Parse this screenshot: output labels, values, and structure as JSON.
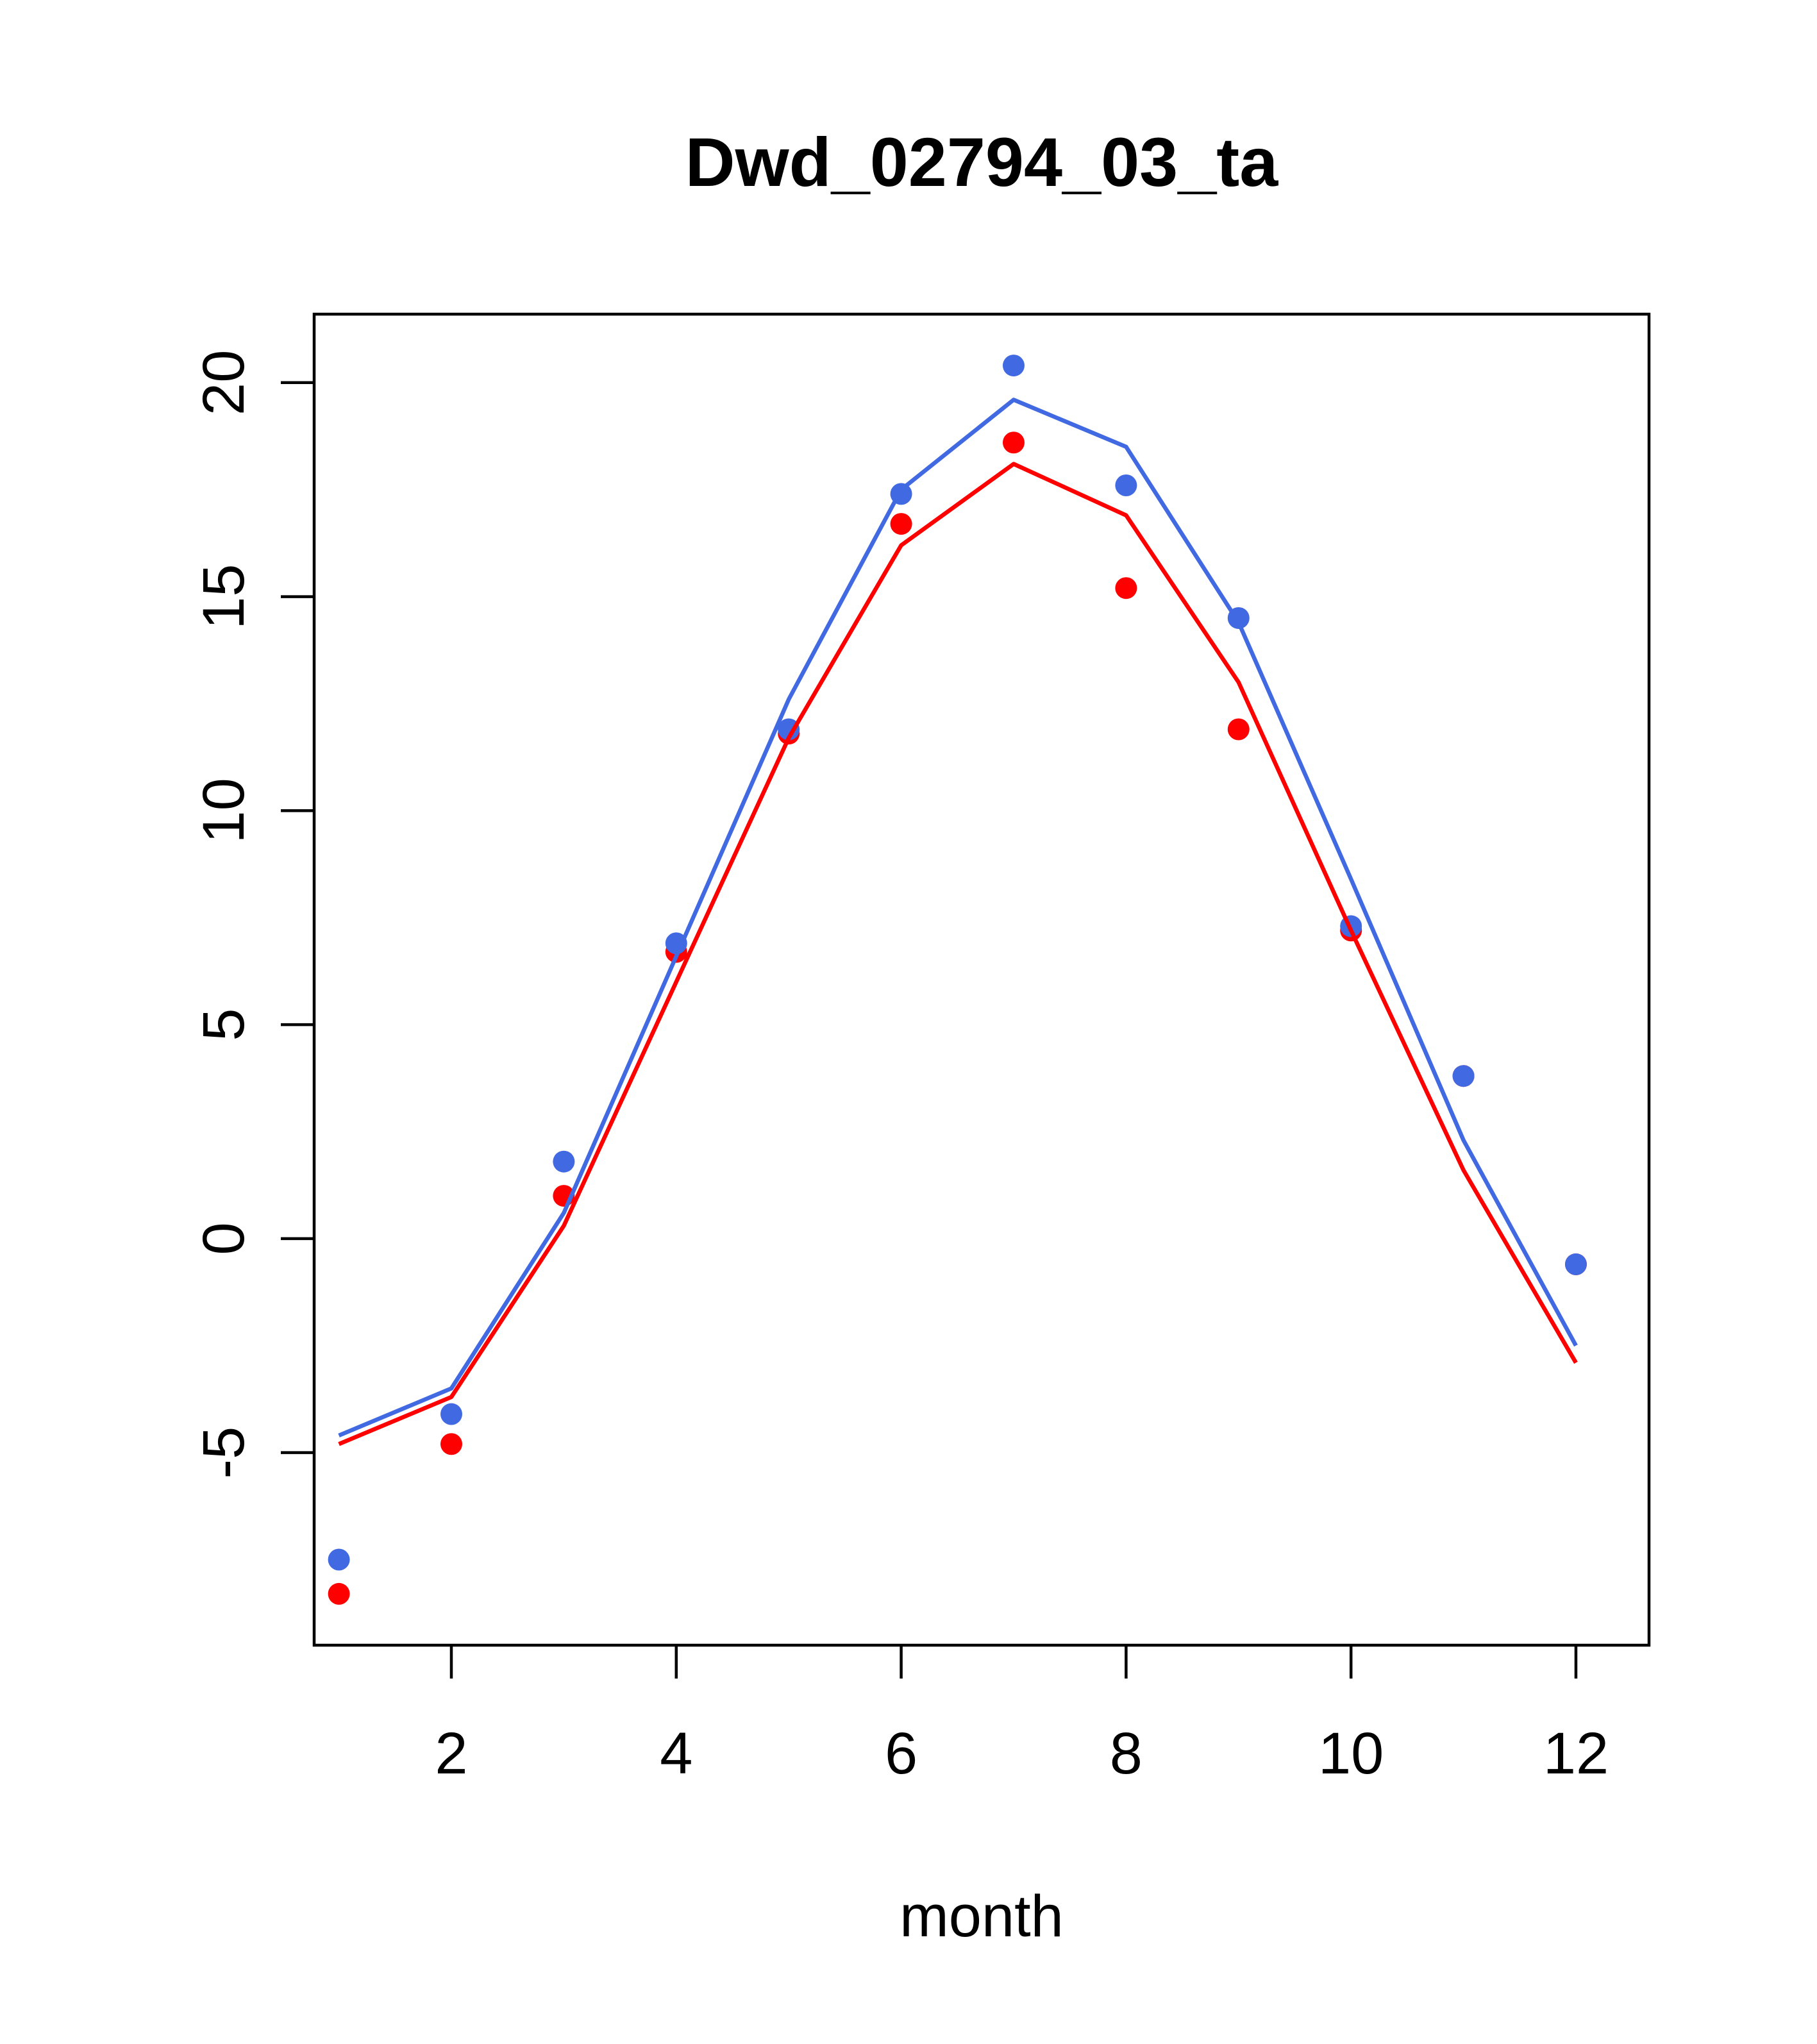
{
  "chart_data": {
    "type": "line",
    "title": "Dwd_02794_03_ta",
    "xlabel": "month",
    "ylabel": "",
    "xlim": [
      0.78,
      12.65
    ],
    "ylim": [
      -9.5,
      21.6
    ],
    "xticks": [
      2,
      4,
      6,
      8,
      10,
      12
    ],
    "yticks": [
      -5,
      0,
      5,
      10,
      15,
      20
    ],
    "grid": false,
    "legend": "none",
    "x": [
      1,
      2,
      3,
      4,
      5,
      6,
      7,
      8,
      9,
      10,
      11,
      12
    ],
    "series": [
      {
        "kind": "points",
        "color": "#FF0000",
        "values": [
          -8.3,
          -4.8,
          1.0,
          6.7,
          11.8,
          16.7,
          18.6,
          15.2,
          11.9,
          7.2,
          3.8,
          -0.6
        ]
      },
      {
        "kind": "points",
        "color": "#4169E1",
        "values": [
          -7.5,
          -4.1,
          1.8,
          6.9,
          11.9,
          17.4,
          20.4,
          17.6,
          14.5,
          7.3,
          3.8,
          -0.6
        ]
      },
      {
        "kind": "line",
        "color": "#FF0000",
        "values": [
          -4.8,
          -3.7,
          0.3,
          6.0,
          11.7,
          16.2,
          18.1,
          16.9,
          13.0,
          7.2,
          1.6,
          -2.9
        ]
      },
      {
        "kind": "line",
        "color": "#4169E1",
        "values": [
          -4.6,
          -3.5,
          0.6,
          6.6,
          12.6,
          17.5,
          19.6,
          18.5,
          14.4,
          8.4,
          2.3,
          -2.5
        ]
      }
    ]
  }
}
